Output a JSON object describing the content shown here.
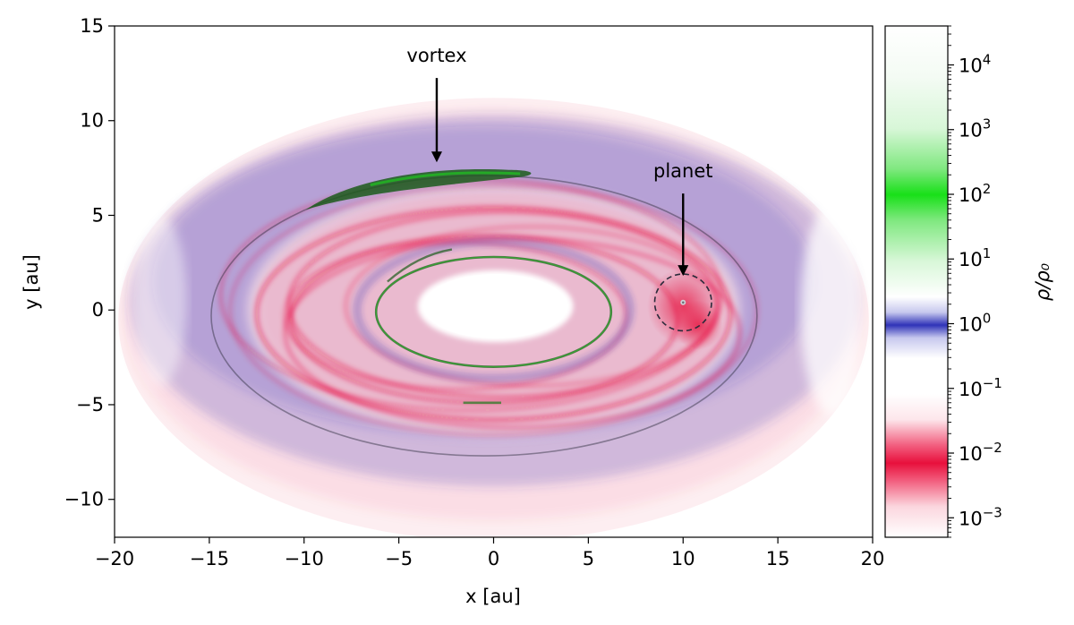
{
  "chart_data": {
    "type": "heatmap",
    "title": "",
    "xlabel": "x [au]",
    "ylabel": "y [au]",
    "xlim": [
      -20,
      20
    ],
    "ylim": [
      -12,
      15
    ],
    "x_ticks": [
      -20,
      -15,
      -10,
      -5,
      0,
      5,
      10,
      15,
      20
    ],
    "y_ticks": [
      -10,
      -5,
      0,
      5,
      10,
      15
    ],
    "x_tick_labels": [
      "−20",
      "−15",
      "−10",
      "−5",
      "0",
      "5",
      "10",
      "15",
      "20"
    ],
    "y_tick_labels": [
      "−10",
      "−5",
      "0",
      "5",
      "10",
      "15"
    ],
    "grid": false,
    "colorbar": {
      "label": "ρ/ρ₀",
      "scale": "log",
      "range": [
        0.0005,
        40000
      ],
      "tick_values": [
        0.001,
        0.01,
        0.1,
        1,
        10,
        100,
        1000,
        10000
      ],
      "tick_bases": [
        "10",
        "10",
        "10",
        "10",
        "10",
        "10",
        "10",
        "10"
      ],
      "tick_exponents": [
        "−3",
        "−2",
        "−1",
        "0",
        "1",
        "2",
        "3",
        "4"
      ],
      "colors": {
        "low": "#e8103c",
        "unit": "#2f33b8",
        "high": "#18e018",
        "background": "#ffffff"
      }
    },
    "annotations": [
      {
        "text": "vortex",
        "target": [
          -3,
          7.8
        ],
        "text_at": [
          -3,
          13.1
        ]
      },
      {
        "text": "planet",
        "target": [
          10,
          1.8
        ],
        "text_at": [
          10,
          7.0
        ]
      }
    ],
    "planet_position": [
      10,
      0.4
    ],
    "planet_circle_radius_au": 1.5
  }
}
